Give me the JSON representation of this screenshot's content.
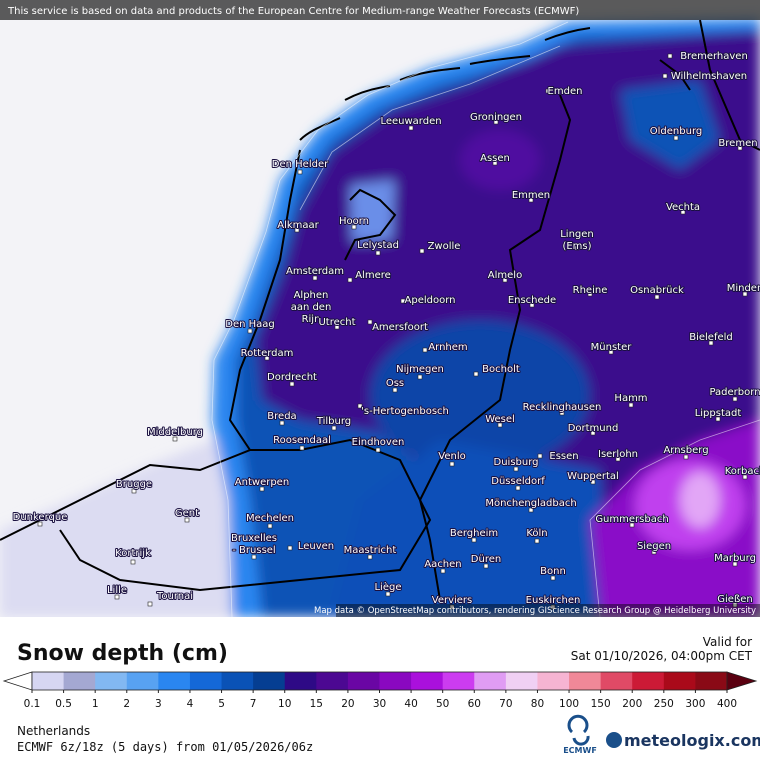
{
  "header": {
    "notice": "This service is based on data and products of the European Centre for Medium-range Weather Forecasts (ECMWF)"
  },
  "map": {
    "attribution": "Map data © OpenStreetMap contributors, rendering GIScience Research Group @ Heidelberg University",
    "cities": [
      {
        "lines": [
          "Bremerhaven"
        ]
      },
      {
        "lines": [
          "Wilhelmshaven"
        ]
      },
      {
        "lines": [
          "Emden"
        ]
      },
      {
        "lines": [
          "Leeuwarden"
        ]
      },
      {
        "lines": [
          "Groningen"
        ]
      },
      {
        "lines": [
          "Oldenburg"
        ]
      },
      {
        "lines": [
          "Bremen"
        ]
      },
      {
        "lines": [
          "Den Helder"
        ]
      },
      {
        "lines": [
          "Assen"
        ]
      },
      {
        "lines": [
          "Emmen"
        ]
      },
      {
        "lines": [
          "Vechta"
        ]
      },
      {
        "lines": [
          "Alkmaar"
        ]
      },
      {
        "lines": [
          "Hoorn"
        ]
      },
      {
        "lines": [
          "Lingen",
          "(Ems)"
        ]
      },
      {
        "lines": [
          "Lelystad"
        ]
      },
      {
        "lines": [
          "Zwolle"
        ]
      },
      {
        "lines": [
          "Amsterdam"
        ]
      },
      {
        "lines": [
          "Almere"
        ]
      },
      {
        "lines": [
          "Almelo"
        ]
      },
      {
        "lines": [
          "Alphen",
          "aan den",
          "Rijn"
        ]
      },
      {
        "lines": [
          "Rheine"
        ]
      },
      {
        "lines": [
          "Osnabrück"
        ]
      },
      {
        "lines": [
          "Minden"
        ]
      },
      {
        "lines": [
          "Apeldoorn"
        ]
      },
      {
        "lines": [
          "Enschede"
        ]
      },
      {
        "lines": [
          "Utrecht"
        ]
      },
      {
        "lines": [
          "Amersfoort"
        ]
      },
      {
        "lines": [
          "Den Haag"
        ]
      },
      {
        "lines": [
          "Bielefeld"
        ]
      },
      {
        "lines": [
          "Arnhem"
        ]
      },
      {
        "lines": [
          "Münster"
        ]
      },
      {
        "lines": [
          "Rotterdam"
        ]
      },
      {
        "lines": [
          "Nijmegen"
        ]
      },
      {
        "lines": [
          "Bocholt"
        ]
      },
      {
        "lines": [
          "Dordrecht"
        ]
      },
      {
        "lines": [
          "Oss"
        ]
      },
      {
        "lines": [
          "Paderborn"
        ]
      },
      {
        "lines": [
          "Hamm"
        ]
      },
      {
        "lines": [
          "Breda"
        ]
      },
      {
        "lines": [
          "'s-Hertogenbosch"
        ]
      },
      {
        "lines": [
          "Tilburg"
        ]
      },
      {
        "lines": [
          "Recklinghausen"
        ]
      },
      {
        "lines": [
          "Wesel"
        ]
      },
      {
        "lines": [
          "Lippstadt"
        ]
      },
      {
        "lines": [
          "Middelburg"
        ]
      },
      {
        "lines": [
          "Dortmund"
        ]
      },
      {
        "lines": [
          "Roosendaal"
        ]
      },
      {
        "lines": [
          "Eindhoven"
        ]
      },
      {
        "lines": [
          "Arnsberg"
        ]
      },
      {
        "lines": [
          "Korbach"
        ]
      },
      {
        "lines": [
          "Venlo"
        ]
      },
      {
        "lines": [
          "Essen"
        ]
      },
      {
        "lines": [
          "Iserlohn"
        ]
      },
      {
        "lines": [
          "Duisburg"
        ]
      },
      {
        "lines": [
          "Wuppertal"
        ]
      },
      {
        "lines": [
          "Antwerpen"
        ]
      },
      {
        "lines": [
          "Düsseldorf"
        ]
      },
      {
        "lines": [
          "Brugge"
        ]
      },
      {
        "lines": [
          "Mönchengladbach"
        ]
      },
      {
        "lines": [
          "Dunkerque"
        ]
      },
      {
        "lines": [
          "Gent"
        ]
      },
      {
        "lines": [
          "Mechelen"
        ]
      },
      {
        "lines": [
          "Gummersbach"
        ]
      },
      {
        "lines": [
          "Bruxelles",
          "- Brussel"
        ]
      },
      {
        "lines": [
          "Bergheim"
        ]
      },
      {
        "lines": [
          "Köln"
        ]
      },
      {
        "lines": [
          "Leuven"
        ]
      },
      {
        "lines": [
          "Maastricht"
        ]
      },
      {
        "lines": [
          "Siegen"
        ]
      },
      {
        "lines": [
          "Kortrijk"
        ]
      },
      {
        "lines": [
          "Düren"
        ]
      },
      {
        "lines": [
          "Marburg"
        ]
      },
      {
        "lines": [
          "Aachen"
        ]
      },
      {
        "lines": [
          "Bonn"
        ]
      },
      {
        "lines": [
          "Lille"
        ]
      },
      {
        "lines": [
          "Liège"
        ]
      },
      {
        "lines": [
          "Tournai"
        ]
      },
      {
        "lines": [
          "Euskirchen"
        ]
      },
      {
        "lines": [
          "Verviers"
        ]
      },
      {
        "lines": [
          "Gießen"
        ]
      }
    ]
  },
  "legend": {
    "title": "Snow depth (cm)",
    "ticks": [
      0.1,
      0.5,
      1,
      2,
      3,
      4,
      5,
      7,
      10,
      15,
      20,
      30,
      40,
      50,
      60,
      70,
      80,
      100,
      150,
      200,
      250,
      300,
      400
    ],
    "under_color": "#ffffff",
    "over_color": "#5a0010",
    "colors": [
      "#d6d6f2",
      "#a4a8d2",
      "#82b8f2",
      "#58a2f2",
      "#2a86f0",
      "#1468d8",
      "#0a52b6",
      "#053e92",
      "#2e0a86",
      "#4c0892",
      "#6a06a4",
      "#8a08c0",
      "#aa10dc",
      "#cc3cf0",
      "#e09cf4",
      "#f0d0f4",
      "#f6b4d2",
      "#f08898",
      "#e04a66",
      "#cc1a36",
      "#aa0a1a",
      "#8a0a16"
    ]
  },
  "valid": {
    "label": "Valid for",
    "time": "Sat 01/10/2026, 04:00pm CET"
  },
  "footer": {
    "region": "Netherlands",
    "model": "ECMWF 6z/18z (5 days) from 01/05/2026/06z",
    "ecmwf": "ECMWF",
    "site": "meteologix.com"
  }
}
